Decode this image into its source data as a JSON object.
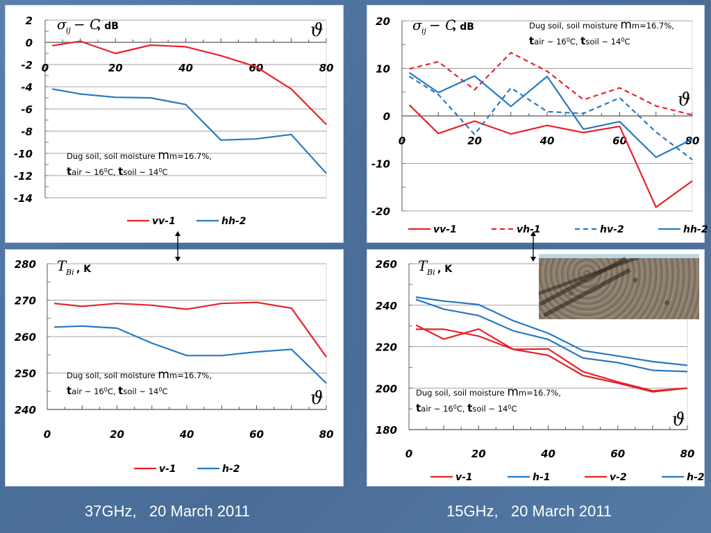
{
  "captions": {
    "left": "37GHz,   20 March 2011",
    "right": "15GHz,   20 March 2011"
  },
  "annotation": {
    "line1_prefix": "Dug soil, soil moisture ",
    "line1_m": "m",
    "line1_suffix": "m=16.7%,",
    "t": "t",
    "air": "air ~ 16",
    "deg": "0",
    "c_comma": "C, ",
    "soil": "soil ~ 14",
    "c": "C"
  },
  "axis_symbols": {
    "sigma": "σ",
    "sigma_sub": "ij",
    "minus_c": " − C",
    "db_unit": ", dB",
    "t_symbol": "T",
    "t_sub": "Bi",
    "k_unit": ", K",
    "theta": "ϑ"
  },
  "colors": {
    "red": "#e8212a",
    "blue": "#2878c0",
    "grid": "#a0a0a0",
    "background": "#4e73a0"
  },
  "chart_data": [
    {
      "id": "tl",
      "type": "line",
      "title": "37GHz backscatter",
      "ylabel": "σij − C, dB",
      "xlabel": "ϑ",
      "xlim": [
        0,
        80
      ],
      "ylim": [
        -14,
        2
      ],
      "x_ticks": [
        0,
        20,
        40,
        60,
        80
      ],
      "y_ticks": [
        2,
        0,
        -2,
        -4,
        -6,
        -8,
        -10,
        -12,
        -14
      ],
      "grid": true,
      "legend_position": "bottom",
      "series": [
        {
          "name": "vv-1",
          "color": "#e8212a",
          "dash": false,
          "x": [
            2,
            10,
            20,
            30,
            40,
            50,
            60,
            70,
            80
          ],
          "y": [
            -0.3,
            0.1,
            -1.0,
            -0.25,
            -0.4,
            -1.2,
            -2.2,
            -4.2,
            -7.4
          ]
        },
        {
          "name": "hh-2",
          "color": "#2878c0",
          "dash": false,
          "x": [
            2,
            10,
            20,
            30,
            40,
            50,
            60,
            70,
            80
          ],
          "y": [
            -4.2,
            -4.65,
            -4.95,
            -5.0,
            -5.6,
            -8.8,
            -8.7,
            -8.3,
            -11.8
          ]
        }
      ]
    },
    {
      "id": "tr",
      "type": "line",
      "title": "15GHz backscatter",
      "ylabel": "σij − C, dB",
      "xlabel": "ϑ",
      "xlim": [
        0,
        80
      ],
      "ylim": [
        -20,
        20
      ],
      "x_ticks": [
        0,
        20,
        40,
        60,
        80
      ],
      "y_ticks": [
        20,
        10,
        0,
        -10,
        -20
      ],
      "grid": true,
      "legend_position": "bottom",
      "series": [
        {
          "name": "vv-1",
          "color": "#e8212a",
          "dash": false,
          "x": [
            2,
            10,
            20,
            30,
            40,
            50,
            60,
            70,
            80
          ],
          "y": [
            2.3,
            -3.7,
            -1.1,
            -3.8,
            -2.0,
            -3.5,
            -2.2,
            -19.2,
            -13.7
          ]
        },
        {
          "name": "vh-1",
          "color": "#e8212a",
          "dash": true,
          "x": [
            2,
            10,
            20,
            30,
            40,
            50,
            60,
            70,
            80
          ],
          "y": [
            9.9,
            11.4,
            5.5,
            13.3,
            9.4,
            3.4,
            5.9,
            2.1,
            0.2
          ]
        },
        {
          "name": "hv-2",
          "color": "#2878c0",
          "dash": true,
          "x": [
            2,
            10,
            20,
            30,
            40,
            50,
            60,
            70,
            80
          ],
          "y": [
            8.3,
            4.5,
            -3.9,
            5.9,
            0.9,
            0.5,
            3.8,
            -3.4,
            -9.2
          ]
        },
        {
          "name": "hh-2",
          "color": "#2878c0",
          "dash": false,
          "x": [
            2,
            10,
            20,
            30,
            40,
            50,
            60,
            70,
            80
          ],
          "y": [
            9.1,
            4.9,
            8.4,
            2.0,
            8.3,
            -2.8,
            -1.2,
            -8.7,
            -4.9
          ]
        }
      ]
    },
    {
      "id": "bl",
      "type": "line",
      "title": "37GHz brightness temperature",
      "ylabel": "TBi, K",
      "xlabel": "ϑ",
      "xlim": [
        0,
        80
      ],
      "ylim": [
        240,
        280
      ],
      "x_ticks": [
        0,
        20,
        40,
        60,
        80
      ],
      "y_ticks": [
        280,
        270,
        260,
        250,
        240
      ],
      "grid": true,
      "legend_position": "bottom",
      "series": [
        {
          "name": "v-1",
          "color": "#e8212a",
          "dash": false,
          "x": [
            2,
            10,
            20,
            30,
            40,
            50,
            60,
            70,
            80
          ],
          "y": [
            269.1,
            268.3,
            269.1,
            268.6,
            267.5,
            269.1,
            269.4,
            267.8,
            254.4
          ]
        },
        {
          "name": "h-2",
          "color": "#2878c0",
          "dash": false,
          "x": [
            2,
            10,
            20,
            30,
            40,
            50,
            60,
            70,
            80
          ],
          "y": [
            262.6,
            262.9,
            262.3,
            258.2,
            254.8,
            254.8,
            255.8,
            256.5,
            247.2
          ]
        }
      ]
    },
    {
      "id": "br",
      "type": "line",
      "title": "15GHz brightness temperature",
      "ylabel": "TBi, K",
      "xlabel": "ϑ",
      "xlim": [
        0,
        80
      ],
      "ylim": [
        180,
        260
      ],
      "x_ticks": [
        0,
        20,
        40,
        60,
        80
      ],
      "y_ticks": [
        260,
        240,
        220,
        200,
        180
      ],
      "grid": true,
      "legend_position": "bottom",
      "series": [
        {
          "name": "v-1",
          "color": "#e8212a",
          "dash": false,
          "x": [
            2,
            10,
            20,
            30,
            40,
            50,
            60,
            70,
            80
          ],
          "y": [
            228.4,
            228.4,
            225.1,
            218.7,
            215.8,
            206.1,
            202.4,
            198.2,
            200.0
          ]
        },
        {
          "name": "h-1",
          "color": "#2878c0",
          "dash": false,
          "x": [
            2,
            10,
            20,
            30,
            40,
            50,
            60,
            70,
            80
          ],
          "y": [
            243.9,
            242.0,
            240.3,
            232.5,
            226.5,
            218.1,
            215.5,
            212.8,
            211.0
          ]
        },
        {
          "name": "v-2",
          "color": "#e8212a",
          "dash": false,
          "x": [
            2,
            10,
            20,
            30,
            40,
            50,
            60,
            70,
            80
          ],
          "y": [
            230.4,
            223.6,
            228.5,
            218.7,
            218.9,
            208.0,
            203.0,
            198.7,
            200.0
          ]
        },
        {
          "name": "h-2",
          "color": "#2878c0",
          "dash": false,
          "x": [
            2,
            10,
            20,
            30,
            40,
            50,
            60,
            70,
            80
          ],
          "y": [
            242.8,
            238.1,
            235.0,
            227.6,
            223.5,
            214.5,
            212.3,
            208.6,
            208.0
          ]
        }
      ]
    }
  ]
}
